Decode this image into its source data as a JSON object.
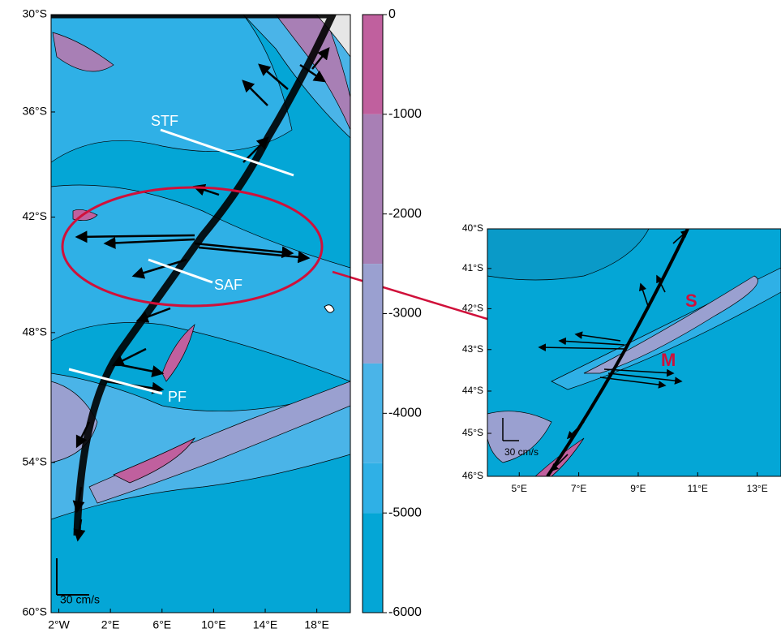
{
  "main_map": {
    "lonlim": [
      -2.6,
      20.6
    ],
    "latlim": [
      -60,
      -30
    ],
    "lon_ticks": [
      {
        "value": -2,
        "label": "2°W"
      },
      {
        "value": 2,
        "label": "2°E"
      },
      {
        "value": 6,
        "label": "6°E"
      },
      {
        "value": 10,
        "label": "10°E"
      },
      {
        "value": 14,
        "label": "14°E"
      },
      {
        "value": 18,
        "label": "18°E"
      }
    ],
    "lat_ticks": [
      {
        "value": -30,
        "label": "30°S"
      },
      {
        "value": -36,
        "label": "36°S"
      },
      {
        "value": -42,
        "label": "42°S"
      },
      {
        "value": -48,
        "label": "48°S"
      },
      {
        "value": -54,
        "label": "54°S"
      },
      {
        "value": -60,
        "label": "60°S"
      }
    ],
    "annotations": [
      "STF",
      "SAF",
      "PF"
    ],
    "scale_label": "30 cm/s"
  },
  "colorbar": {
    "lim": [
      -6000,
      0
    ],
    "ticks": [
      0,
      -1000,
      -2000,
      -3000,
      -4000,
      -5000,
      -6000
    ],
    "levels": [
      {
        "from": 0,
        "to": -1000,
        "color": "#c0609e"
      },
      {
        "from": -1000,
        "to": -2500,
        "color": "#a87fb5"
      },
      {
        "from": -2500,
        "to": -3500,
        "color": "#9aa0d0"
      },
      {
        "from": -3500,
        "to": -4500,
        "color": "#4ab4e8"
      },
      {
        "from": -4500,
        "to": -5000,
        "color": "#2fb0e6"
      },
      {
        "from": -5000,
        "to": -6000,
        "color": "#04a6d6"
      }
    ]
  },
  "inset": {
    "lonlim": [
      3.93,
      13.8
    ],
    "latlim": [
      -46,
      -40
    ],
    "lon_ticks": [
      {
        "value": 5,
        "label": "5°E"
      },
      {
        "value": 7,
        "label": "7°E"
      },
      {
        "value": 9,
        "label": "9°E"
      },
      {
        "value": 11,
        "label": "11°E"
      },
      {
        "value": 13,
        "label": "13°E"
      }
    ],
    "lat_ticks": [
      {
        "value": -40,
        "label": "40°S"
      },
      {
        "value": -41,
        "label": "41°S"
      },
      {
        "value": -42,
        "label": "42°S"
      },
      {
        "value": -43,
        "label": "43°S"
      },
      {
        "value": -44,
        "label": "44°S"
      },
      {
        "value": -45,
        "label": "45°S"
      },
      {
        "value": -46,
        "label": "46°S"
      }
    ],
    "annotations": [
      "S",
      "M"
    ],
    "scale_label": "30 cm/s"
  }
}
